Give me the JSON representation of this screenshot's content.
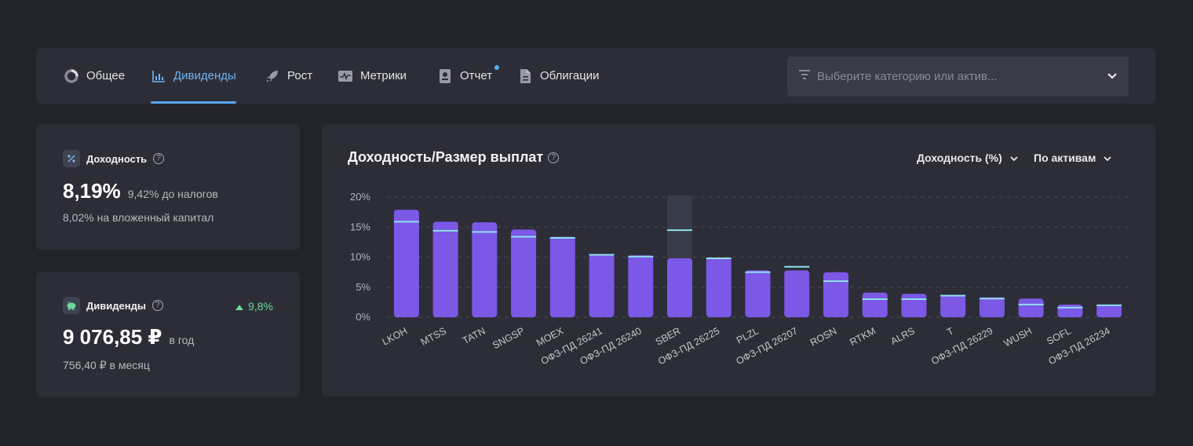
{
  "tabs": [
    {
      "label": "Общее",
      "icon": "donut-icon",
      "active": false
    },
    {
      "label": "Дивиденды",
      "icon": "bar-chart-icon",
      "active": true
    },
    {
      "label": "Рост",
      "icon": "rocket-icon",
      "active": false
    },
    {
      "label": "Метрики",
      "icon": "pulse-icon",
      "active": false
    },
    {
      "label": "Отчет",
      "icon": "report-icon",
      "active": false,
      "notification_dot": true
    },
    {
      "label": "Облигации",
      "icon": "document-icon",
      "active": false
    }
  ],
  "category_select": {
    "placeholder": "Выберите категорию или актив...",
    "icon": "filter-icon"
  },
  "yield_card": {
    "label": "Доходность",
    "icon": "percent-icon",
    "value": "8,19%",
    "before_tax": "9,42% до налогов",
    "on_capital": "8,02% на вложенный капитал"
  },
  "dividends_card": {
    "label": "Дивиденды",
    "icon": "piggy-bank-icon",
    "change": "9,8%",
    "value": "9 076,85 ₽",
    "period": "в год",
    "monthly": "756,40 ₽ в месяц"
  },
  "chart_panel": {
    "title": "Доходность/Размер выплат",
    "metric_dropdown": "Доходность (%)",
    "group_dropdown": "По активам"
  },
  "colors": {
    "bar": "#7b58e6",
    "marker": "#8fe0f0",
    "accent": "#5aa7ef",
    "positive": "#6ed69a",
    "highlight": "#3b3f4c"
  },
  "chart_data": {
    "type": "bar",
    "categories": [
      "LKOH",
      "MTSS",
      "TATN",
      "SNGSP",
      "MOEX",
      "ОФЗ-ПД 26241",
      "ОФЗ-ПД 26240",
      "SBER",
      "ОФЗ-ПД 26225",
      "PLZL",
      "ОФЗ-ПД 26207",
      "ROSN",
      "RTKM",
      "ALRS",
      "T",
      "ОФЗ-ПД 26229",
      "WUSH",
      "SOFL",
      "ОФЗ-ПД 26234"
    ],
    "values": [
      17.9,
      15.9,
      15.8,
      14.6,
      13.4,
      10.5,
      10.3,
      9.8,
      9.9,
      7.8,
      7.8,
      7.5,
      4.1,
      3.9,
      3.7,
      3.3,
      3.1,
      2.1,
      2.1
    ],
    "marker_values": [
      15.9,
      14.4,
      14.2,
      13.4,
      13.2,
      10.4,
      10.1,
      14.5,
      9.8,
      7.5,
      8.4,
      6.0,
      3.0,
      3.0,
      3.6,
      3.1,
      2.1,
      1.6,
      2.0
    ],
    "highlighted_category": "SBER",
    "yticks": [
      "0%",
      "5%",
      "10%",
      "15%",
      "20%"
    ],
    "ylim": [
      0,
      20
    ],
    "grid": true
  }
}
